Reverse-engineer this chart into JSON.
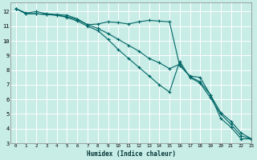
{
  "xlabel": "Humidex (Indice chaleur)",
  "ylabel": "",
  "bg_color": "#c8ece6",
  "grid_color": "#b0ddd6",
  "line_color": "#006666",
  "xlim": [
    -0.5,
    23
  ],
  "ylim": [
    3,
    12.6
  ],
  "yticks": [
    3,
    4,
    5,
    6,
    7,
    8,
    9,
    10,
    11,
    12
  ],
  "xticks": [
    0,
    1,
    2,
    3,
    4,
    5,
    6,
    7,
    8,
    9,
    10,
    11,
    12,
    13,
    14,
    15,
    16,
    17,
    18,
    19,
    20,
    21,
    22,
    23
  ],
  "series": [
    {
      "x": [
        0,
        1,
        2,
        3,
        4,
        5,
        6,
        7,
        8,
        9,
        10,
        11,
        12,
        13,
        14,
        15,
        16,
        17,
        18,
        19,
        20,
        21,
        22,
        23
      ],
      "y": [
        12.2,
        11.9,
        12.0,
        11.85,
        11.8,
        11.75,
        11.5,
        11.1,
        11.15,
        11.3,
        11.25,
        11.15,
        11.3,
        11.4,
        11.35,
        11.3,
        8.3,
        7.6,
        7.5,
        6.3,
        4.7,
        4.1,
        3.3,
        3.3
      ],
      "marker": "+"
    },
    {
      "x": [
        0,
        1,
        2,
        3,
        4,
        5,
        6,
        7,
        8,
        9,
        10,
        11,
        12,
        13,
        14,
        15,
        16,
        17,
        18,
        19,
        20,
        21,
        22,
        23
      ],
      "y": [
        12.2,
        11.85,
        11.85,
        11.8,
        11.75,
        11.65,
        11.45,
        11.1,
        10.85,
        10.5,
        10.1,
        9.7,
        9.3,
        8.8,
        8.5,
        8.1,
        8.4,
        7.55,
        7.2,
        6.3,
        5.1,
        4.5,
        3.7,
        3.3
      ],
      "marker": "+"
    },
    {
      "x": [
        0,
        1,
        2,
        3,
        4,
        5,
        6,
        7,
        8,
        9,
        10,
        11,
        12,
        13,
        14,
        15,
        16,
        17,
        18,
        19,
        20,
        21,
        22,
        23
      ],
      "y": [
        12.2,
        11.85,
        11.85,
        11.8,
        11.75,
        11.6,
        11.35,
        11.0,
        10.7,
        10.1,
        9.4,
        8.8,
        8.2,
        7.6,
        7.0,
        6.5,
        8.6,
        7.5,
        7.1,
        6.1,
        5.0,
        4.3,
        3.5,
        3.3
      ],
      "marker": "+"
    }
  ]
}
